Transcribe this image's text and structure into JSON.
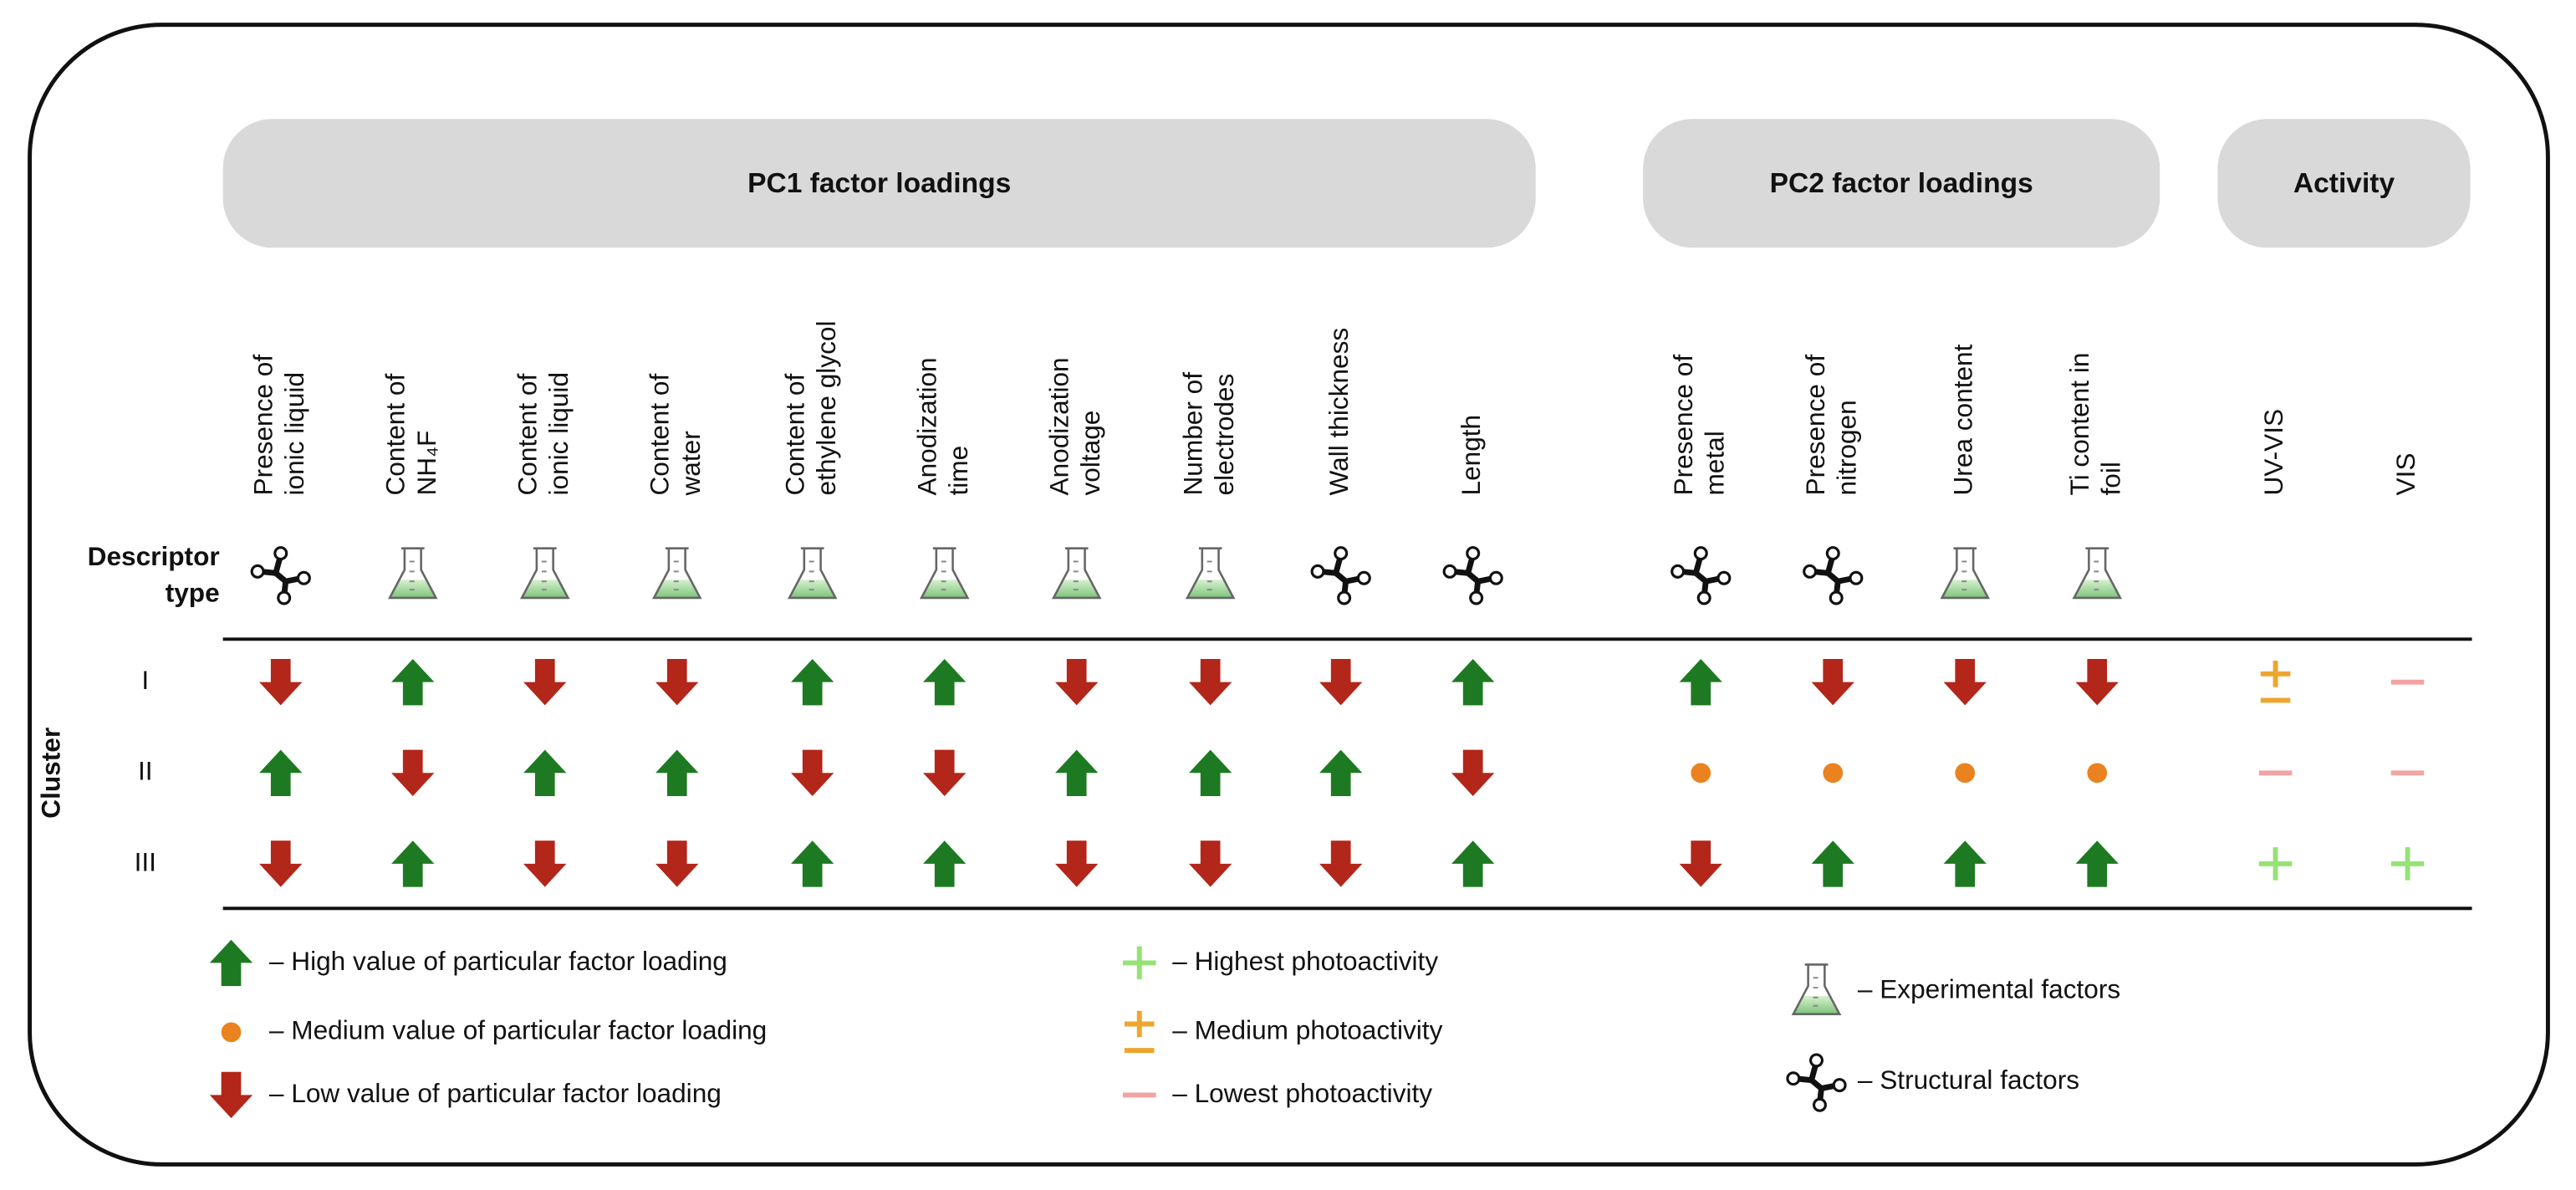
{
  "row_header": [
    "Descriptor",
    "type"
  ],
  "cluster_label": "Cluster",
  "clusters": [
    "I",
    "II",
    "III"
  ],
  "groups": [
    {
      "label": "PC1 factor loadings",
      "columns": [
        {
          "label": [
            "Presence of",
            "ionic liquid"
          ],
          "type": "structure",
          "values": [
            "down",
            "up",
            "down"
          ]
        },
        {
          "label": [
            "Content of",
            "NH₄F"
          ],
          "type": "flask",
          "values": [
            "up",
            "down",
            "up"
          ]
        },
        {
          "label": [
            "Content of",
            "ionic liquid"
          ],
          "type": "flask",
          "values": [
            "down",
            "up",
            "down"
          ]
        },
        {
          "label": [
            "Content of",
            "water"
          ],
          "type": "flask",
          "values": [
            "down",
            "up",
            "down"
          ]
        },
        {
          "label": [
            "Content of",
            "ethylene glycol"
          ],
          "type": "flask",
          "values": [
            "up",
            "down",
            "up"
          ]
        },
        {
          "label": [
            "Anodization",
            "time"
          ],
          "type": "flask",
          "values": [
            "up",
            "down",
            "up"
          ]
        },
        {
          "label": [
            "Anodization",
            "voltage"
          ],
          "type": "flask",
          "values": [
            "down",
            "up",
            "down"
          ]
        },
        {
          "label": [
            "Number of",
            "electrodes"
          ],
          "type": "flask",
          "values": [
            "down",
            "up",
            "down"
          ]
        },
        {
          "label": [
            "Wall thickness"
          ],
          "type": "structure",
          "values": [
            "down",
            "up",
            "down"
          ]
        },
        {
          "label": [
            "Length"
          ],
          "type": "structure",
          "values": [
            "up",
            "down",
            "up"
          ]
        }
      ]
    },
    {
      "label": "PC2 factor loadings",
      "columns": [
        {
          "label": [
            "Presence of",
            "metal"
          ],
          "type": "structure",
          "values": [
            "up",
            "dot",
            "down"
          ]
        },
        {
          "label": [
            "Presence of",
            "nitrogen"
          ],
          "type": "structure",
          "values": [
            "down",
            "dot",
            "up"
          ]
        },
        {
          "label": [
            "Urea content"
          ],
          "type": "flask",
          "values": [
            "down",
            "dot",
            "up"
          ]
        },
        {
          "label": [
            "Ti content in",
            "foil"
          ],
          "type": "flask",
          "values": [
            "down",
            "dot",
            "up"
          ]
        }
      ]
    },
    {
      "label": "Activity",
      "columns": [
        {
          "label": [
            "UV-VIS"
          ],
          "values": [
            "plusminus",
            "minus",
            "plus"
          ]
        },
        {
          "label": [
            "VIS"
          ],
          "values": [
            "minus",
            "minus",
            "plus"
          ]
        }
      ]
    }
  ],
  "legend": [
    [
      {
        "symbol": "up",
        "text": "– High value of particular factor loading"
      },
      {
        "symbol": "dot",
        "text": "– Medium value of particular factor loading"
      },
      {
        "symbol": "down",
        "text": "– Low value of particular factor loading"
      }
    ],
    [
      {
        "symbol": "plus",
        "text": "– Highest photoactivity"
      },
      {
        "symbol": "plusminus",
        "text": "– Medium photoactivity"
      },
      {
        "symbol": "minus",
        "text": "– Lowest photoactivity"
      }
    ],
    [
      {
        "symbol": "flask",
        "text": "– Experimental factors"
      },
      {
        "symbol": "structure",
        "text": "– Structural factors"
      }
    ]
  ]
}
